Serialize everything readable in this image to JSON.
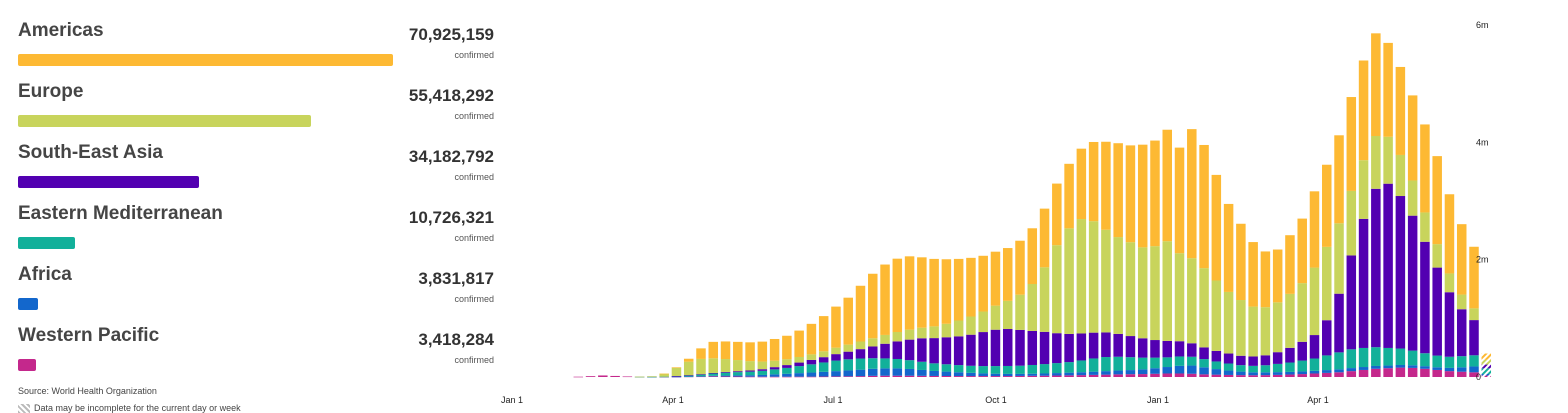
{
  "regions": [
    {
      "name": "Americas",
      "count": "70,925,159",
      "unit": "confirmed",
      "value": 70925159,
      "color": "#FDB933"
    },
    {
      "name": "Europe",
      "count": "55,418,292",
      "unit": "confirmed",
      "value": 55418292,
      "color": "#C8D45C"
    },
    {
      "name": "South-East Asia",
      "count": "34,182,792",
      "unit": "confirmed",
      "value": 34182792,
      "color": "#5200B1"
    },
    {
      "name": "Eastern Mediterranean",
      "count": "10,726,321",
      "unit": "confirmed",
      "value": 10726321,
      "color": "#12B09A"
    },
    {
      "name": "Africa",
      "count": "3,831,817",
      "unit": "confirmed",
      "value": 3831817,
      "color": "#1367CC"
    },
    {
      "name": "Western Pacific",
      "count": "3,418,284",
      "unit": "confirmed",
      "value": 3418284,
      "color": "#C4288C"
    }
  ],
  "source": "Source: World Health Organization",
  "note": "Data may be incomplete for the current day or week",
  "chart_data": {
    "type": "bar",
    "stacked": true,
    "x_tick_labels": [
      "Jan 1",
      "Apr 1",
      "Jul 1",
      "Oct 1",
      "Jan 1",
      "Apr 1"
    ],
    "y_tick_labels": [
      "0",
      "2m",
      "4m",
      "6m"
    ],
    "ylim": [
      0,
      6000000
    ],
    "y_axis_position": "right",
    "incomplete_last_week": true,
    "week_starts": [
      "2020-01-06",
      "2020-01-13",
      "2020-01-20",
      "2020-01-27",
      "2020-02-03",
      "2020-02-10",
      "2020-02-17",
      "2020-02-24",
      "2020-03-02",
      "2020-03-09",
      "2020-03-16",
      "2020-03-23",
      "2020-03-30",
      "2020-04-06",
      "2020-04-13",
      "2020-04-20",
      "2020-04-27",
      "2020-05-04",
      "2020-05-11",
      "2020-05-18",
      "2020-05-25",
      "2020-06-01",
      "2020-06-08",
      "2020-06-15",
      "2020-06-22",
      "2020-06-29",
      "2020-07-06",
      "2020-07-13",
      "2020-07-20",
      "2020-07-27",
      "2020-08-03",
      "2020-08-10",
      "2020-08-17",
      "2020-08-24",
      "2020-08-31",
      "2020-09-07",
      "2020-09-14",
      "2020-09-21",
      "2020-09-28",
      "2020-10-05",
      "2020-10-12",
      "2020-10-19",
      "2020-10-26",
      "2020-11-02",
      "2020-11-09",
      "2020-11-16",
      "2020-11-23",
      "2020-11-30",
      "2020-12-07",
      "2020-12-14",
      "2020-12-21",
      "2020-12-28",
      "2021-01-04",
      "2021-01-11",
      "2021-01-18",
      "2021-01-25",
      "2021-02-01",
      "2021-02-08",
      "2021-02-15",
      "2021-02-22",
      "2021-03-01",
      "2021-03-08",
      "2021-03-15",
      "2021-03-22",
      "2021-03-29",
      "2021-04-05",
      "2021-04-12",
      "2021-04-19",
      "2021-04-26",
      "2021-05-03",
      "2021-05-10",
      "2021-05-17",
      "2021-05-24",
      "2021-05-31",
      "2021-06-07",
      "2021-06-14"
    ],
    "series": [
      {
        "name": "Western Pacific",
        "color": "#C4288C",
        "values": [
          0,
          0,
          5000,
          14000,
          26000,
          18000,
          9000,
          4000,
          3000,
          3000,
          5000,
          7000,
          9000,
          11000,
          9000,
          8000,
          6000,
          5000,
          5000,
          5000,
          6000,
          6000,
          8000,
          10000,
          12000,
          15000,
          20000,
          22000,
          22000,
          22000,
          20000,
          18000,
          17000,
          16000,
          16000,
          16000,
          16000,
          16000,
          18000,
          20000,
          22000,
          25000,
          28000,
          32000,
          36000,
          40000,
          45000,
          48000,
          50000,
          55000,
          60000,
          60000,
          55000,
          45000,
          40000,
          35000,
          32000,
          30000,
          32000,
          36000,
          42000,
          50000,
          60000,
          70000,
          80000,
          100000,
          120000,
          140000,
          150000,
          160000,
          155000,
          140000,
          120000,
          100000,
          90000,
          80000
        ]
      },
      {
        "name": "Africa",
        "color": "#1367CC",
        "values": [
          0,
          0,
          0,
          0,
          0,
          0,
          0,
          0,
          0,
          0,
          1000,
          3000,
          5000,
          10000,
          15000,
          20000,
          25000,
          30000,
          40000,
          50000,
          60000,
          70000,
          80000,
          90000,
          100000,
          110000,
          120000,
          125000,
          125000,
          115000,
          100000,
          85000,
          75000,
          65000,
          55000,
          45000,
          40000,
          37000,
          35000,
          35000,
          38000,
          42000,
          46000,
          50000,
          55000,
          60000,
          65000,
          70000,
          80000,
          95000,
          110000,
          130000,
          140000,
          120000,
          95000,
          75000,
          60000,
          50000,
          48000,
          47000,
          45000,
          45000,
          45000,
          48000,
          50000,
          52000,
          50000,
          48000,
          45000,
          45000,
          45000,
          45000,
          45000,
          55000,
          75000,
          100000
        ]
      },
      {
        "name": "Eastern Mediterranean",
        "color": "#12B09A",
        "values": [
          0,
          0,
          0,
          0,
          0,
          0,
          0,
          200,
          1000,
          3000,
          10000,
          20000,
          30000,
          40000,
          50000,
          55000,
          60000,
          70000,
          85000,
          100000,
          120000,
          140000,
          160000,
          180000,
          190000,
          190000,
          180000,
          170000,
          160000,
          150000,
          140000,
          130000,
          125000,
          122000,
          120000,
          125000,
          130000,
          135000,
          140000,
          150000,
          160000,
          170000,
          180000,
          200000,
          225000,
          240000,
          235000,
          220000,
          200000,
          180000,
          165000,
          160000,
          150000,
          140000,
          130000,
          120000,
          110000,
          110000,
          120000,
          140000,
          160000,
          185000,
          210000,
          250000,
          290000,
          320000,
          325000,
          320000,
          300000,
          280000,
          250000,
          220000,
          200000,
          190000,
          190000,
          190000
        ]
      },
      {
        "name": "South-East Asia",
        "color": "#5200B1",
        "values": [
          0,
          0,
          0,
          0,
          0,
          0,
          0,
          0,
          0,
          0,
          500,
          1500,
          4000,
          8000,
          12000,
          16000,
          20000,
          28000,
          38000,
          48000,
          60000,
          75000,
          90000,
          110000,
          130000,
          160000,
          200000,
          250000,
          300000,
          350000,
          400000,
          430000,
          460000,
          490000,
          530000,
          580000,
          620000,
          630000,
          610000,
          580000,
          550000,
          510000,
          480000,
          460000,
          440000,
          420000,
          390000,
          360000,
          330000,
          300000,
          280000,
          260000,
          230000,
          200000,
          180000,
          170000,
          160000,
          160000,
          170000,
          200000,
          250000,
          320000,
          400000,
          600000,
          1000000,
          1600000,
          2200000,
          2700000,
          2800000,
          2600000,
          2300000,
          1900000,
          1500000,
          1100000,
          800000,
          600000
        ]
      },
      {
        "name": "Europe",
        "color": "#C8D45C",
        "values": [
          0,
          0,
          0,
          0,
          0,
          0,
          0,
          2000,
          10000,
          50000,
          140000,
          230000,
          260000,
          250000,
          220000,
          190000,
          160000,
          130000,
          110000,
          100000,
          95000,
          95000,
          100000,
          110000,
          120000,
          130000,
          140000,
          150000,
          160000,
          170000,
          180000,
          200000,
          230000,
          270000,
          310000,
          350000,
          410000,
          480000,
          600000,
          800000,
          1100000,
          1500000,
          1800000,
          1950000,
          1900000,
          1750000,
          1650000,
          1600000,
          1550000,
          1600000,
          1700000,
          1500000,
          1450000,
          1350000,
          1200000,
          1050000,
          950000,
          850000,
          820000,
          850000,
          920000,
          1000000,
          1150000,
          1250000,
          1200000,
          1100000,
          1000000,
          900000,
          800000,
          700000,
          600000,
          500000,
          400000,
          320000,
          250000,
          200000
        ]
      },
      {
        "name": "Americas",
        "color": "#FDB933",
        "values": [
          0,
          0,
          0,
          0,
          0,
          0,
          0,
          0,
          0,
          1000,
          10000,
          50000,
          180000,
          280000,
          300000,
          310000,
          320000,
          340000,
          370000,
          400000,
          450000,
          520000,
          600000,
          700000,
          800000,
          950000,
          1100000,
          1200000,
          1250000,
          1250000,
          1200000,
          1150000,
          1100000,
          1050000,
          1000000,
          950000,
          920000,
          900000,
          920000,
          950000,
          1000000,
          1050000,
          1100000,
          1200000,
          1350000,
          1500000,
          1600000,
          1650000,
          1750000,
          1800000,
          1900000,
          1800000,
          2200000,
          2100000,
          1800000,
          1500000,
          1300000,
          1100000,
          950000,
          900000,
          1000000,
          1100000,
          1300000,
          1400000,
          1500000,
          1600000,
          1700000,
          1750000,
          1600000,
          1500000,
          1450000,
          1500000,
          1500000,
          1350000,
          1200000,
          1050000
        ]
      }
    ]
  }
}
